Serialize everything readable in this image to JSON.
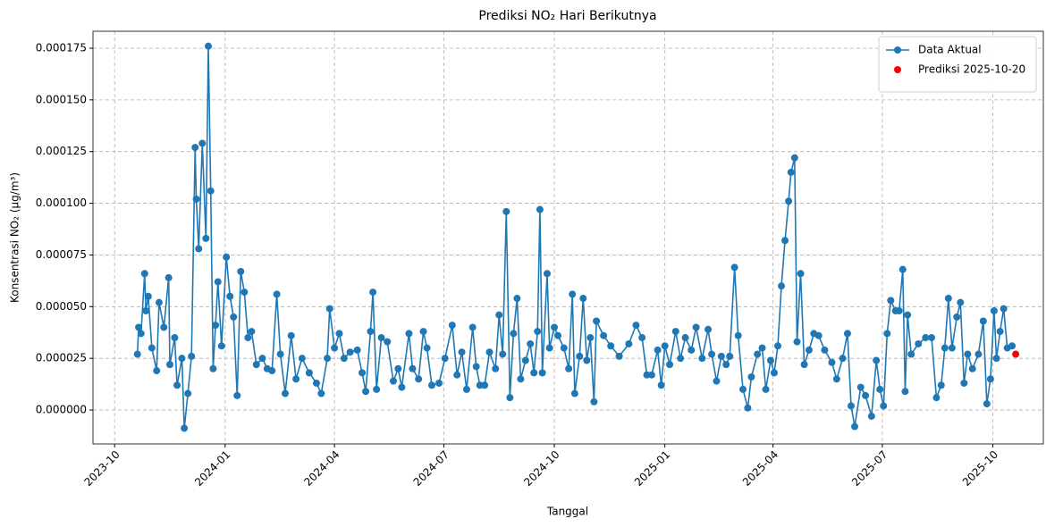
{
  "chart_data": {
    "type": "line",
    "title": "Prediksi NO₂ Hari Berikutnya",
    "xlabel": "Tanggal",
    "ylabel": "Konsentrasi NO₂ (µg/m³)",
    "xlim": [
      "2023-09-13",
      "2025-11-12"
    ],
    "xticks": [
      "2023-10",
      "2024-01",
      "2024-04",
      "2024-07",
      "2024-10",
      "2025-01",
      "2025-04",
      "2025-07",
      "2025-10"
    ],
    "ylim": [
      -1.64e-05,
      0.0001832
    ],
    "yticks": [
      {
        "value": 0,
        "label": "0.000000"
      },
      {
        "value": 2.5e-05,
        "label": "0.000025"
      },
      {
        "value": 5e-05,
        "label": "0.000050"
      },
      {
        "value": 7.5e-05,
        "label": "0.000075"
      },
      {
        "value": 0.0001,
        "label": "0.000100"
      },
      {
        "value": 0.000125,
        "label": "0.000125"
      },
      {
        "value": 0.00015,
        "label": "0.000150"
      },
      {
        "value": 0.000175,
        "label": "0.000175"
      }
    ],
    "grid": true,
    "legend": "upper right",
    "series": [
      {
        "name": "Data Aktual",
        "color": "#1f77b4",
        "style": "line-marker",
        "x": [
          "2023-10-20",
          "2023-10-21",
          "2023-10-23",
          "2023-10-26",
          "2023-10-27",
          "2023-10-29",
          "2023-11-01",
          "2023-11-05",
          "2023-11-07",
          "2023-11-11",
          "2023-11-15",
          "2023-11-16",
          "2023-11-20",
          "2023-11-22",
          "2023-11-26",
          "2023-11-28",
          "2023-12-01",
          "2023-12-04",
          "2023-12-07",
          "2023-12-08",
          "2023-12-10",
          "2023-12-13",
          "2023-12-16",
          "2023-12-18",
          "2023-12-20",
          "2023-12-22",
          "2023-12-24",
          "2023-12-26",
          "2023-12-29",
          "2024-01-02",
          "2024-01-05",
          "2024-01-08",
          "2024-01-11",
          "2024-01-14",
          "2024-01-17",
          "2024-01-20",
          "2024-01-23",
          "2024-01-27",
          "2024-02-01",
          "2024-02-05",
          "2024-02-09",
          "2024-02-13",
          "2024-02-16",
          "2024-02-20",
          "2024-02-25",
          "2024-02-29",
          "2024-03-05",
          "2024-03-11",
          "2024-03-17",
          "2024-03-21",
          "2024-03-26",
          "2024-03-28",
          "2024-04-01",
          "2024-04-05",
          "2024-04-09",
          "2024-04-14",
          "2024-04-20",
          "2024-04-24",
          "2024-04-27",
          "2024-05-01",
          "2024-05-03",
          "2024-05-06",
          "2024-05-10",
          "2024-05-15",
          "2024-05-20",
          "2024-05-24",
          "2024-05-27",
          "2024-06-02",
          "2024-06-05",
          "2024-06-10",
          "2024-06-14",
          "2024-06-17",
          "2024-06-21",
          "2024-06-27",
          "2024-07-02",
          "2024-07-08",
          "2024-07-12",
          "2024-07-16",
          "2024-07-20",
          "2024-07-25",
          "2024-07-28",
          "2024-07-31",
          "2024-08-04",
          "2024-08-08",
          "2024-08-13",
          "2024-08-16",
          "2024-08-19",
          "2024-08-22",
          "2024-08-25",
          "2024-08-28",
          "2024-08-31",
          "2024-09-03",
          "2024-09-07",
          "2024-09-11",
          "2024-09-14",
          "2024-09-17",
          "2024-09-19",
          "2024-09-21",
          "2024-09-25",
          "2024-09-27",
          "2024-10-01",
          "2024-10-04",
          "2024-10-09",
          "2024-10-13",
          "2024-10-16",
          "2024-10-18",
          "2024-10-22",
          "2024-10-25",
          "2024-10-28",
          "2024-10-31",
          "2024-11-03",
          "2024-11-05",
          "2024-11-11",
          "2024-11-17",
          "2024-11-24",
          "2024-12-02",
          "2024-12-08",
          "2024-12-13",
          "2024-12-17",
          "2024-12-21",
          "2024-12-26",
          "2024-12-29",
          "2025-01-01",
          "2025-01-05",
          "2025-01-10",
          "2025-01-14",
          "2025-01-18",
          "2025-01-23",
          "2025-01-27",
          "2025-02-01",
          "2025-02-06",
          "2025-02-09",
          "2025-02-13",
          "2025-02-17",
          "2025-02-21",
          "2025-02-24",
          "2025-02-28",
          "2025-03-03",
          "2025-03-07",
          "2025-03-11",
          "2025-03-14",
          "2025-03-19",
          "2025-03-23",
          "2025-03-26",
          "2025-03-30",
          "2025-04-02",
          "2025-04-05",
          "2025-04-08",
          "2025-04-11",
          "2025-04-14",
          "2025-04-16",
          "2025-04-19",
          "2025-04-21",
          "2025-04-24",
          "2025-04-27",
          "2025-05-01",
          "2025-05-05",
          "2025-05-09",
          "2025-05-14",
          "2025-05-20",
          "2025-05-24",
          "2025-05-29",
          "2025-06-02",
          "2025-06-05",
          "2025-06-08",
          "2025-06-13",
          "2025-06-17",
          "2025-06-22",
          "2025-06-26",
          "2025-06-29",
          "2025-07-02",
          "2025-07-05",
          "2025-07-08",
          "2025-07-12",
          "2025-07-15",
          "2025-07-18",
          "2025-07-20",
          "2025-07-22",
          "2025-07-25",
          "2025-07-31",
          "2025-08-06",
          "2025-08-11",
          "2025-08-15",
          "2025-08-19",
          "2025-08-22",
          "2025-08-25",
          "2025-08-28",
          "2025-09-01",
          "2025-09-04",
          "2025-09-07",
          "2025-09-10",
          "2025-09-14",
          "2025-09-19",
          "2025-09-23",
          "2025-09-26",
          "2025-09-29",
          "2025-10-02",
          "2025-10-04",
          "2025-10-07",
          "2025-10-10",
          "2025-10-13",
          "2025-10-17"
        ],
        "values": [
          2.7e-05,
          4e-05,
          3.7e-05,
          6.6e-05,
          4.8e-05,
          5.5e-05,
          3e-05,
          1.9e-05,
          5.2e-05,
          4e-05,
          6.4e-05,
          2.2e-05,
          3.5e-05,
          1.2e-05,
          2.5e-05,
          -8.8e-06,
          8e-06,
          2.6e-05,
          0.000127,
          0.000102,
          7.8e-05,
          0.000129,
          8.3e-05,
          0.000176,
          0.000106,
          2e-05,
          4.1e-05,
          6.2e-05,
          3.1e-05,
          7.4e-05,
          5.5e-05,
          4.5e-05,
          7e-06,
          6.7e-05,
          5.7e-05,
          3.5e-05,
          3.8e-05,
          2.2e-05,
          2.5e-05,
          2e-05,
          1.9e-05,
          5.6e-05,
          2.7e-05,
          8e-06,
          3.6e-05,
          1.5e-05,
          2.5e-05,
          1.8e-05,
          1.3e-05,
          8e-06,
          2.5e-05,
          4.9e-05,
          3e-05,
          3.7e-05,
          2.5e-05,
          2.8e-05,
          2.9e-05,
          1.8e-05,
          9e-06,
          3.8e-05,
          5.7e-05,
          1e-05,
          3.5e-05,
          3.3e-05,
          1.4e-05,
          2e-05,
          1.1e-05,
          3.7e-05,
          2e-05,
          1.5e-05,
          3.8e-05,
          3e-05,
          1.2e-05,
          1.3e-05,
          2.5e-05,
          4.1e-05,
          1.7e-05,
          2.8e-05,
          1e-05,
          4e-05,
          2.1e-05,
          1.2e-05,
          1.2e-05,
          2.8e-05,
          2e-05,
          4.6e-05,
          2.7e-05,
          9.6e-05,
          6e-06,
          3.7e-05,
          5.4e-05,
          1.5e-05,
          2.4e-05,
          3.2e-05,
          1.8e-05,
          3.8e-05,
          9.7e-05,
          1.8e-05,
          6.6e-05,
          3e-05,
          4e-05,
          3.6e-05,
          3e-05,
          2e-05,
          5.6e-05,
          8e-06,
          2.6e-05,
          5.4e-05,
          2.4e-05,
          3.5e-05,
          4e-06,
          4.3e-05,
          3.6e-05,
          3.1e-05,
          2.6e-05,
          3.2e-05,
          4.1e-05,
          3.5e-05,
          1.7e-05,
          1.7e-05,
          2.9e-05,
          1.2e-05,
          3.1e-05,
          2.2e-05,
          3.8e-05,
          2.5e-05,
          3.5e-05,
          2.9e-05,
          4e-05,
          2.5e-05,
          3.9e-05,
          2.7e-05,
          1.4e-05,
          2.6e-05,
          2.2e-05,
          2.6e-05,
          6.9e-05,
          3.6e-05,
          1e-05,
          1e-06,
          1.6e-05,
          2.7e-05,
          3e-05,
          1e-05,
          2.4e-05,
          1.8e-05,
          3.1e-05,
          6e-05,
          8.2e-05,
          0.000101,
          0.000115,
          0.000122,
          3.3e-05,
          6.6e-05,
          2.2e-05,
          2.9e-05,
          3.7e-05,
          3.6e-05,
          2.9e-05,
          2.3e-05,
          1.5e-05,
          2.5e-05,
          3.7e-05,
          2e-06,
          -8e-06,
          1.1e-05,
          7e-06,
          -3e-06,
          2.4e-05,
          1e-05,
          2e-06,
          3.7e-05,
          5.3e-05,
          4.8e-05,
          4.8e-05,
          6.8e-05,
          9e-06,
          4.6e-05,
          2.7e-05,
          3.2e-05,
          3.5e-05,
          3.5e-05,
          6e-06,
          1.2e-05,
          3e-05,
          5.4e-05,
          3e-05,
          4.5e-05,
          5.2e-05,
          1.3e-05,
          2.7e-05,
          2e-05,
          2.7e-05,
          4.3e-05,
          3e-06,
          1.5e-05,
          4.8e-05,
          2.5e-05,
          3.8e-05,
          4.9e-05,
          3e-05,
          3.1e-05
        ]
      },
      {
        "name": "Prediksi 2025-10-20",
        "color": "#ff0000",
        "style": "marker",
        "x": [
          "2025-10-20"
        ],
        "values": [
          2.7e-05
        ]
      }
    ]
  }
}
